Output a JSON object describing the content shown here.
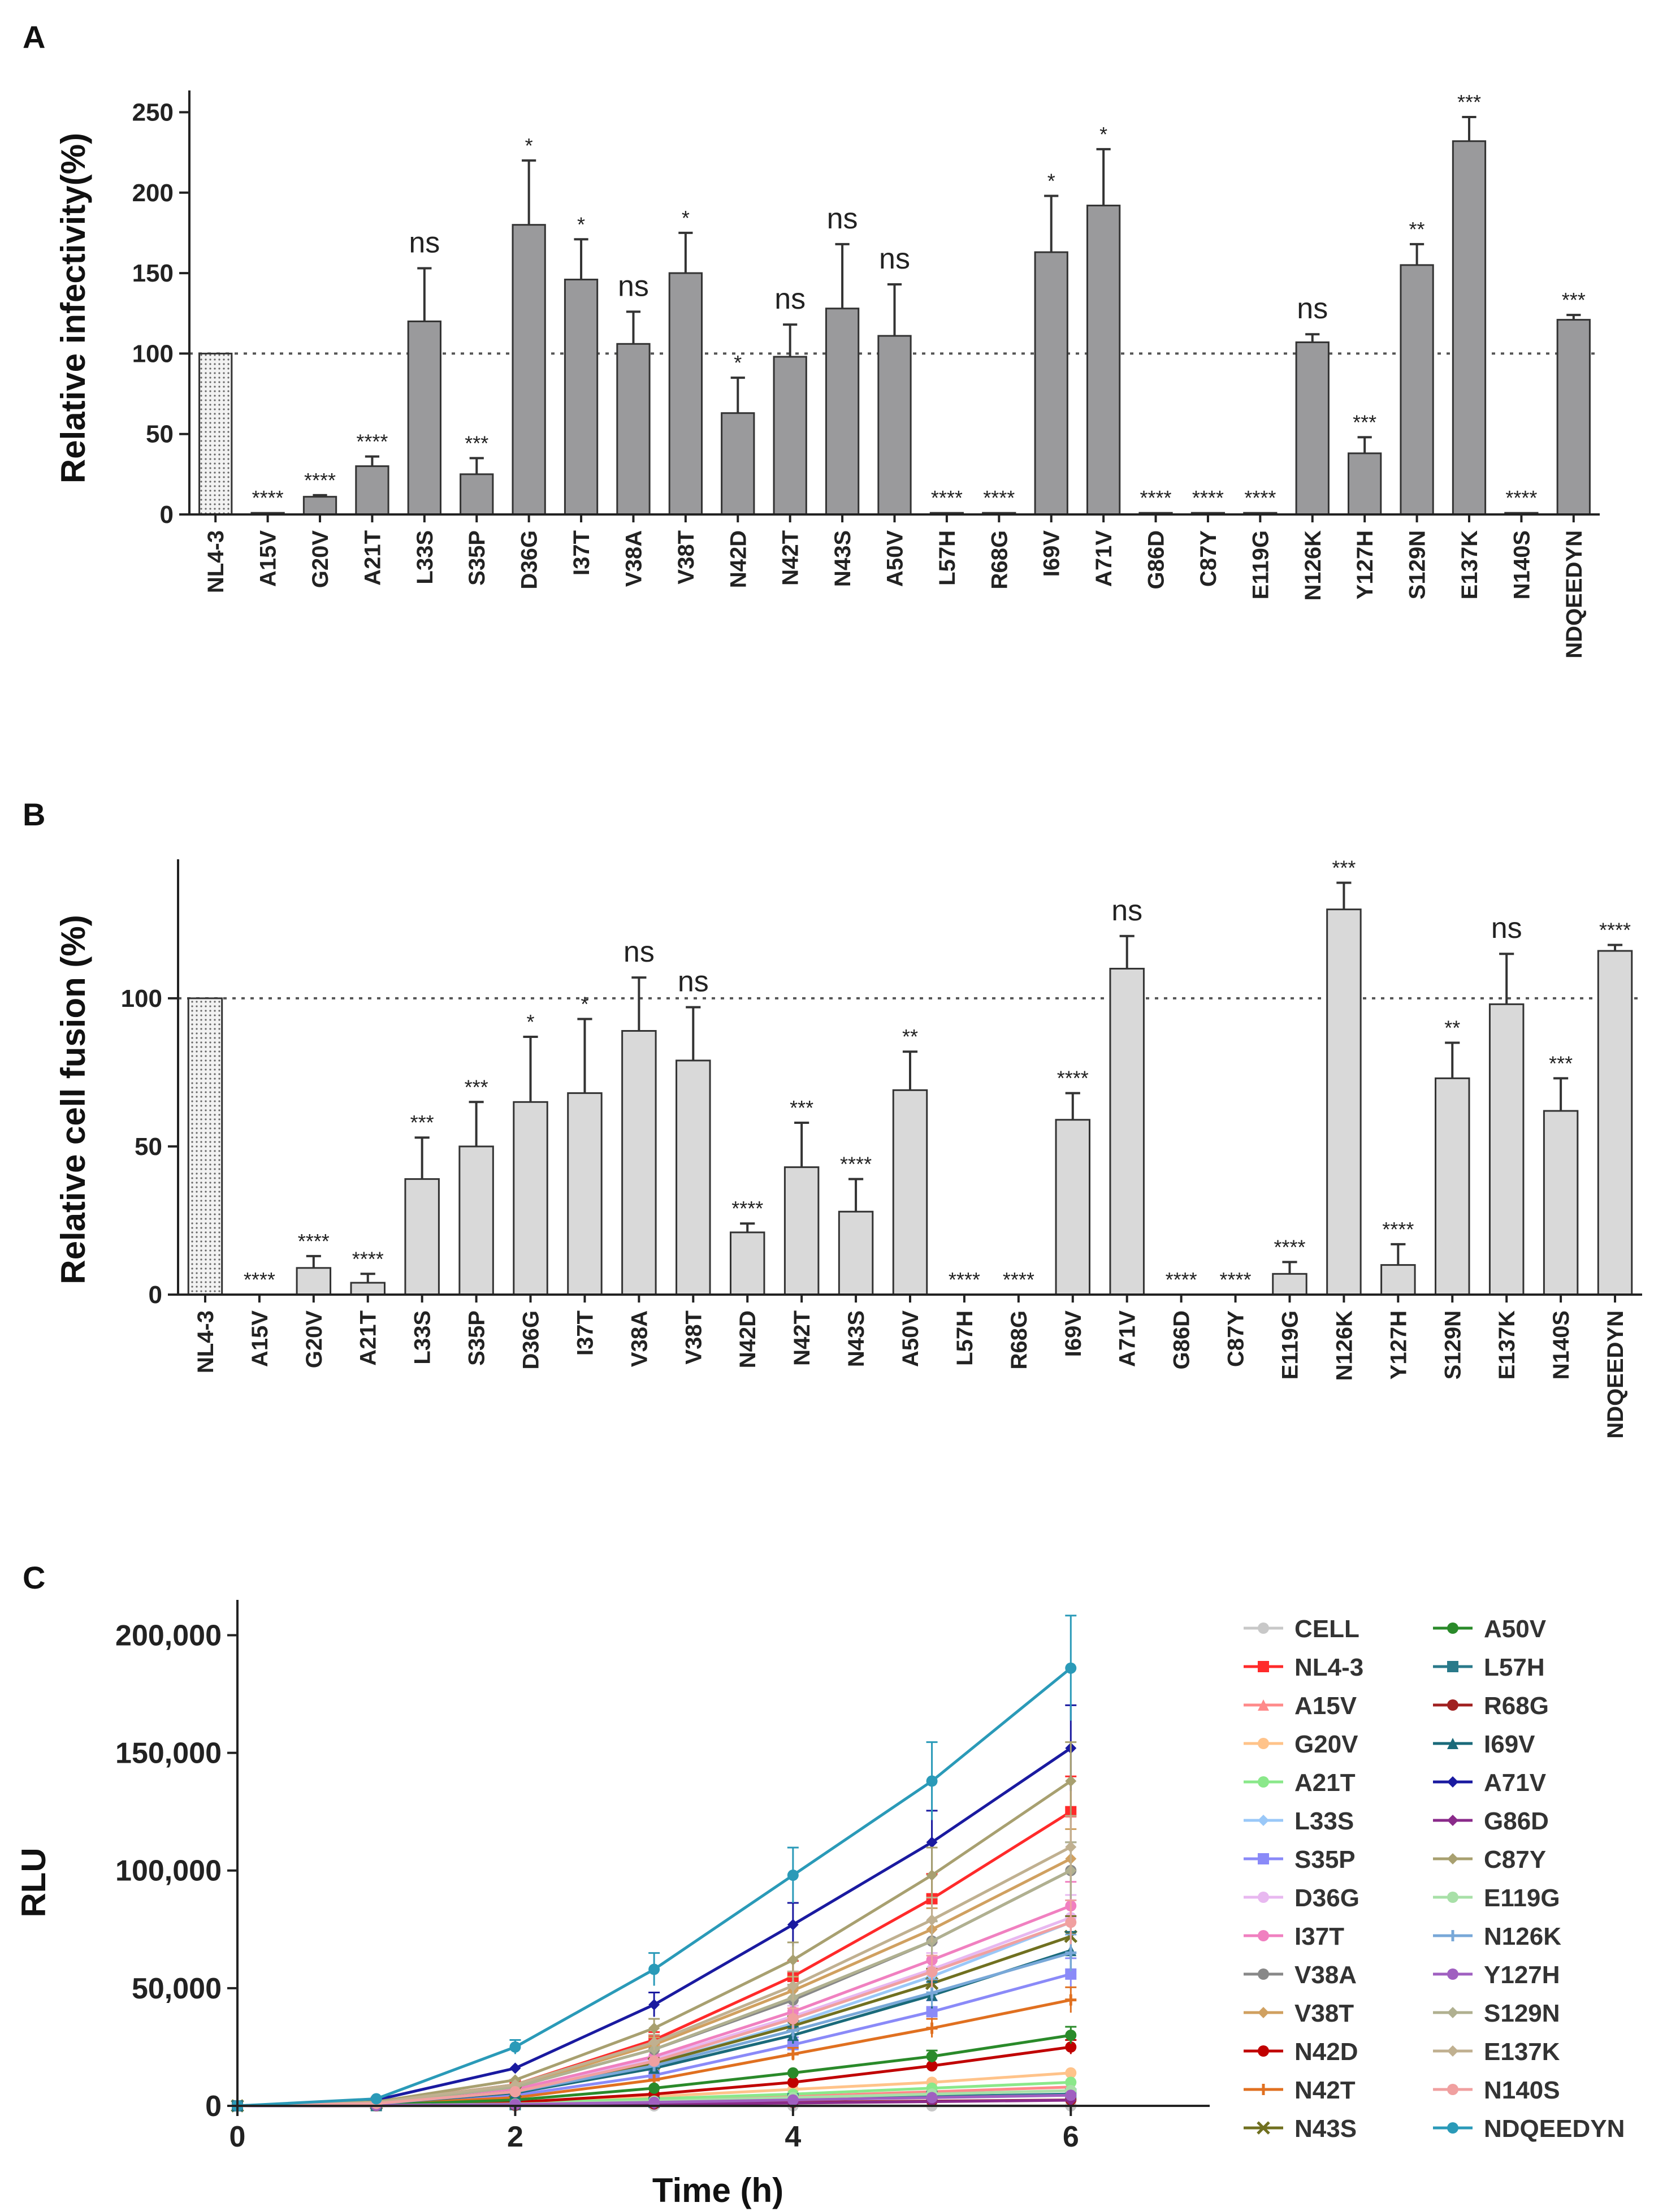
{
  "panels": {
    "a": {
      "label": "A"
    },
    "b": {
      "label": "B"
    },
    "c": {
      "label": "C"
    }
  },
  "chart_data": [
    {
      "id": "A",
      "type": "bar",
      "ylabel": "Relative infectivity(%)",
      "ylim": [
        0,
        260
      ],
      "yticks": [
        0,
        50,
        100,
        150,
        200,
        250
      ],
      "reference_line": 100,
      "bar_color": "#9a9a9c",
      "control_pattern": "dotted",
      "categories": [
        "NL4-3",
        "A15V",
        "G20V",
        "A21T",
        "L33S",
        "S35P",
        "D36G",
        "I37T",
        "V38A",
        "V38T",
        "N42D",
        "N42T",
        "N43S",
        "A50V",
        "L57H",
        "R68G",
        "I69V",
        "A71V",
        "G86D",
        "C87Y",
        "E119G",
        "N126K",
        "Y127H",
        "S129N",
        "E137K",
        "N140S",
        "NDQEEDYN"
      ],
      "values": [
        100,
        1,
        11,
        30,
        120,
        25,
        180,
        146,
        106,
        150,
        63,
        98,
        128,
        111,
        1,
        1,
        163,
        192,
        1,
        1,
        1,
        107,
        38,
        155,
        232,
        1,
        121
      ],
      "errors": [
        0,
        0,
        1,
        6,
        33,
        10,
        40,
        25,
        20,
        25,
        22,
        20,
        40,
        32,
        0,
        0,
        35,
        35,
        0,
        0,
        0,
        5,
        10,
        13,
        15,
        0,
        3
      ],
      "significance": [
        "",
        "****",
        "****",
        "****",
        "ns",
        "***",
        "*",
        "*",
        "ns",
        "*",
        "*",
        "ns",
        "ns",
        "ns",
        "****",
        "****",
        "*",
        "*",
        "****",
        "****",
        "****",
        "ns",
        "***",
        "**",
        "***",
        "****",
        "***"
      ]
    },
    {
      "id": "B",
      "type": "bar",
      "ylabel": "Relative cell fusion (%)",
      "ylim": [
        0,
        145
      ],
      "yticks": [
        0,
        50,
        100
      ],
      "reference_line": 100,
      "bar_color": "#d9d9d9",
      "control_pattern": "dotted",
      "categories": [
        "NL4-3",
        "A15V",
        "G20V",
        "A21T",
        "L33S",
        "S35P",
        "D36G",
        "I37T",
        "V38A",
        "V38T",
        "N42D",
        "N42T",
        "N43S",
        "A50V",
        "L57H",
        "R68G",
        "I69V",
        "A71V",
        "G86D",
        "C87Y",
        "E119G",
        "N126K",
        "Y127H",
        "S129N",
        "E137K",
        "N140S",
        "NDQEEDYN"
      ],
      "values": [
        100,
        0,
        9,
        4,
        39,
        50,
        65,
        68,
        89,
        79,
        21,
        43,
        28,
        69,
        0,
        0,
        59,
        110,
        0,
        0,
        7,
        130,
        10,
        73,
        98,
        62,
        116
      ],
      "errors": [
        0,
        0,
        4,
        3,
        14,
        15,
        22,
        25,
        18,
        18,
        3,
        15,
        11,
        13,
        0,
        0,
        9,
        11,
        0,
        0,
        4,
        9,
        7,
        12,
        17,
        11,
        2
      ],
      "significance": [
        "",
        "****",
        "****",
        "****",
        "***",
        "***",
        "*",
        "*",
        "ns",
        "ns",
        "****",
        "***",
        "****",
        "**",
        "****",
        "****",
        "****",
        "ns",
        "****",
        "****",
        "****",
        "***",
        "****",
        "**",
        "ns",
        "***",
        "****"
      ]
    },
    {
      "id": "C",
      "type": "line",
      "xlabel": "Time (h)",
      "ylabel": "RLU",
      "xlim": [
        0,
        7
      ],
      "ylim": [
        0,
        215000
      ],
      "xticks": [
        0,
        2,
        4,
        6
      ],
      "yticks": [
        0,
        50000,
        100000,
        150000,
        200000
      ],
      "ytick_labels": [
        "0",
        "50,000",
        "100,000",
        "150,000",
        "200,000"
      ],
      "x": [
        0,
        1,
        2,
        3,
        4,
        5,
        6
      ],
      "legend_position": "right",
      "series": [
        {
          "name": "CELL",
          "color": "#c8c8c8",
          "marker": "circle",
          "values": [
            0,
            0,
            0,
            0,
            0,
            0,
            0
          ]
        },
        {
          "name": "NL4-3",
          "color": "#ff2a2a",
          "marker": "square",
          "values": [
            0,
            1500,
            9000,
            28000,
            55000,
            88000,
            125000
          ]
        },
        {
          "name": "A15V",
          "color": "#ff8a8a",
          "marker": "triangle",
          "values": [
            0,
            200,
            1000,
            2500,
            4000,
            6000,
            8000
          ]
        },
        {
          "name": "G20V",
          "color": "#ffc38a",
          "marker": "circle",
          "values": [
            0,
            300,
            1500,
            4000,
            7000,
            10000,
            14000
          ]
        },
        {
          "name": "A21T",
          "color": "#8ae88a",
          "marker": "circle",
          "values": [
            0,
            200,
            1000,
            3000,
            5000,
            7500,
            10000
          ]
        },
        {
          "name": "L33S",
          "color": "#9ac8f8",
          "marker": "diamond",
          "values": [
            0,
            900,
            6000,
            18000,
            35000,
            55000,
            78000
          ]
        },
        {
          "name": "S35P",
          "color": "#8a8af8",
          "marker": "square",
          "values": [
            0,
            700,
            4500,
            13000,
            26000,
            40000,
            56000
          ]
        },
        {
          "name": "D36G",
          "color": "#e8b8f0",
          "marker": "circle",
          "values": [
            0,
            1000,
            6500,
            20000,
            38000,
            58000,
            80000
          ]
        },
        {
          "name": "I37T",
          "color": "#f080c0",
          "marker": "circle",
          "values": [
            0,
            1100,
            7000,
            21000,
            40000,
            62000,
            85000
          ]
        },
        {
          "name": "V38A",
          "color": "#888888",
          "marker": "circle",
          "values": [
            0,
            1200,
            8000,
            24000,
            45000,
            70000,
            100000
          ]
        },
        {
          "name": "V38T",
          "color": "#d0a060",
          "marker": "diamond",
          "values": [
            0,
            1300,
            8500,
            26000,
            49000,
            75000,
            105000
          ]
        },
        {
          "name": "N42D",
          "color": "#c00000",
          "marker": "circle",
          "values": [
            0,
            300,
            1500,
            5000,
            10000,
            17000,
            25000
          ]
        },
        {
          "name": "N42T",
          "color": "#e07020",
          "marker": "plus",
          "values": [
            0,
            600,
            3500,
            11000,
            22000,
            33000,
            45000
          ]
        },
        {
          "name": "N43S",
          "color": "#707020",
          "marker": "cross",
          "values": [
            0,
            1000,
            6000,
            18000,
            34000,
            52000,
            72000
          ]
        },
        {
          "name": "A50V",
          "color": "#2a8a2a",
          "marker": "circle",
          "values": [
            0,
            400,
            2500,
            7500,
            14000,
            21000,
            30000
          ]
        },
        {
          "name": "L57H",
          "color": "#2a7a8a",
          "marker": "square",
          "values": [
            0,
            100,
            500,
            1500,
            3000,
            4000,
            5000
          ]
        },
        {
          "name": "R68G",
          "color": "#a02020",
          "marker": "circle",
          "values": [
            0,
            100,
            300,
            800,
            1500,
            2000,
            2500
          ]
        },
        {
          "name": "I69V",
          "color": "#1a6a7a",
          "marker": "triangle",
          "values": [
            0,
            900,
            5500,
            16000,
            30000,
            47000,
            66000
          ]
        },
        {
          "name": "A71V",
          "color": "#1a1aa0",
          "marker": "diamond",
          "values": [
            0,
            2500,
            16000,
            43000,
            77000,
            112000,
            152000
          ]
        },
        {
          "name": "G86D",
          "color": "#8a2a8a",
          "marker": "diamond",
          "values": [
            0,
            100,
            300,
            700,
            1200,
            1800,
            2400
          ]
        },
        {
          "name": "C87Y",
          "color": "#a8a070",
          "marker": "diamond",
          "values": [
            0,
            1700,
            11000,
            33000,
            62000,
            98000,
            138000
          ]
        },
        {
          "name": "E119G",
          "color": "#a8e0a8",
          "marker": "circle",
          "values": [
            0,
            200,
            800,
            2000,
            3500,
            5000,
            6500
          ]
        },
        {
          "name": "N126K",
          "color": "#78a8d8",
          "marker": "plus",
          "values": [
            0,
            900,
            6000,
            17000,
            32000,
            48000,
            65000
          ]
        },
        {
          "name": "Y127H",
          "color": "#a060c0",
          "marker": "circle",
          "values": [
            0,
            200,
            600,
            1500,
            2500,
            3500,
            4500
          ]
        },
        {
          "name": "S129N",
          "color": "#b0b090",
          "marker": "diamond",
          "values": [
            0,
            1200,
            8000,
            24000,
            46000,
            70000,
            100000
          ]
        },
        {
          "name": "E137K",
          "color": "#c0b090",
          "marker": "diamond",
          "values": [
            0,
            1400,
            9000,
            27000,
            51000,
            79000,
            110000
          ]
        },
        {
          "name": "N140S",
          "color": "#f0a0a0",
          "marker": "circle",
          "values": [
            0,
            1000,
            6000,
            19000,
            37000,
            57000,
            78000
          ]
        },
        {
          "name": "NDQEEDYN",
          "color": "#2a9ab8",
          "marker": "circle",
          "values": [
            0,
            3000,
            25000,
            58000,
            98000,
            138000,
            186000
          ]
        }
      ]
    }
  ]
}
